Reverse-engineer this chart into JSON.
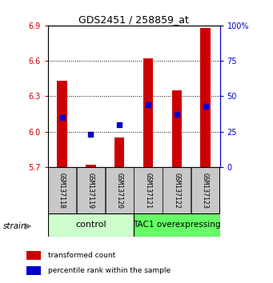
{
  "title": "GDS2451 / 258859_at",
  "samples": [
    "GSM137118",
    "GSM137119",
    "GSM137120",
    "GSM137121",
    "GSM137122",
    "GSM137123"
  ],
  "transformed_counts": [
    6.43,
    5.72,
    5.95,
    6.62,
    6.35,
    6.88
  ],
  "percentile_ranks": [
    35,
    23,
    30,
    44,
    37,
    43
  ],
  "y_min": 5.7,
  "y_max": 6.9,
  "y_ticks": [
    5.7,
    6.0,
    6.3,
    6.6,
    6.9
  ],
  "right_y_ticks": [
    0,
    25,
    50,
    75,
    100
  ],
  "bar_color": "#cc0000",
  "dot_color": "#0000cc",
  "bar_bottom": 5.7,
  "control_color": "#ccffcc",
  "overexpressing_color": "#66ff66",
  "left_tick_color": "#cc0000",
  "right_tick_color": "#0000cc",
  "legend_red": "transformed count",
  "legend_blue": "percentile rank within the sample",
  "bar_width": 0.35
}
